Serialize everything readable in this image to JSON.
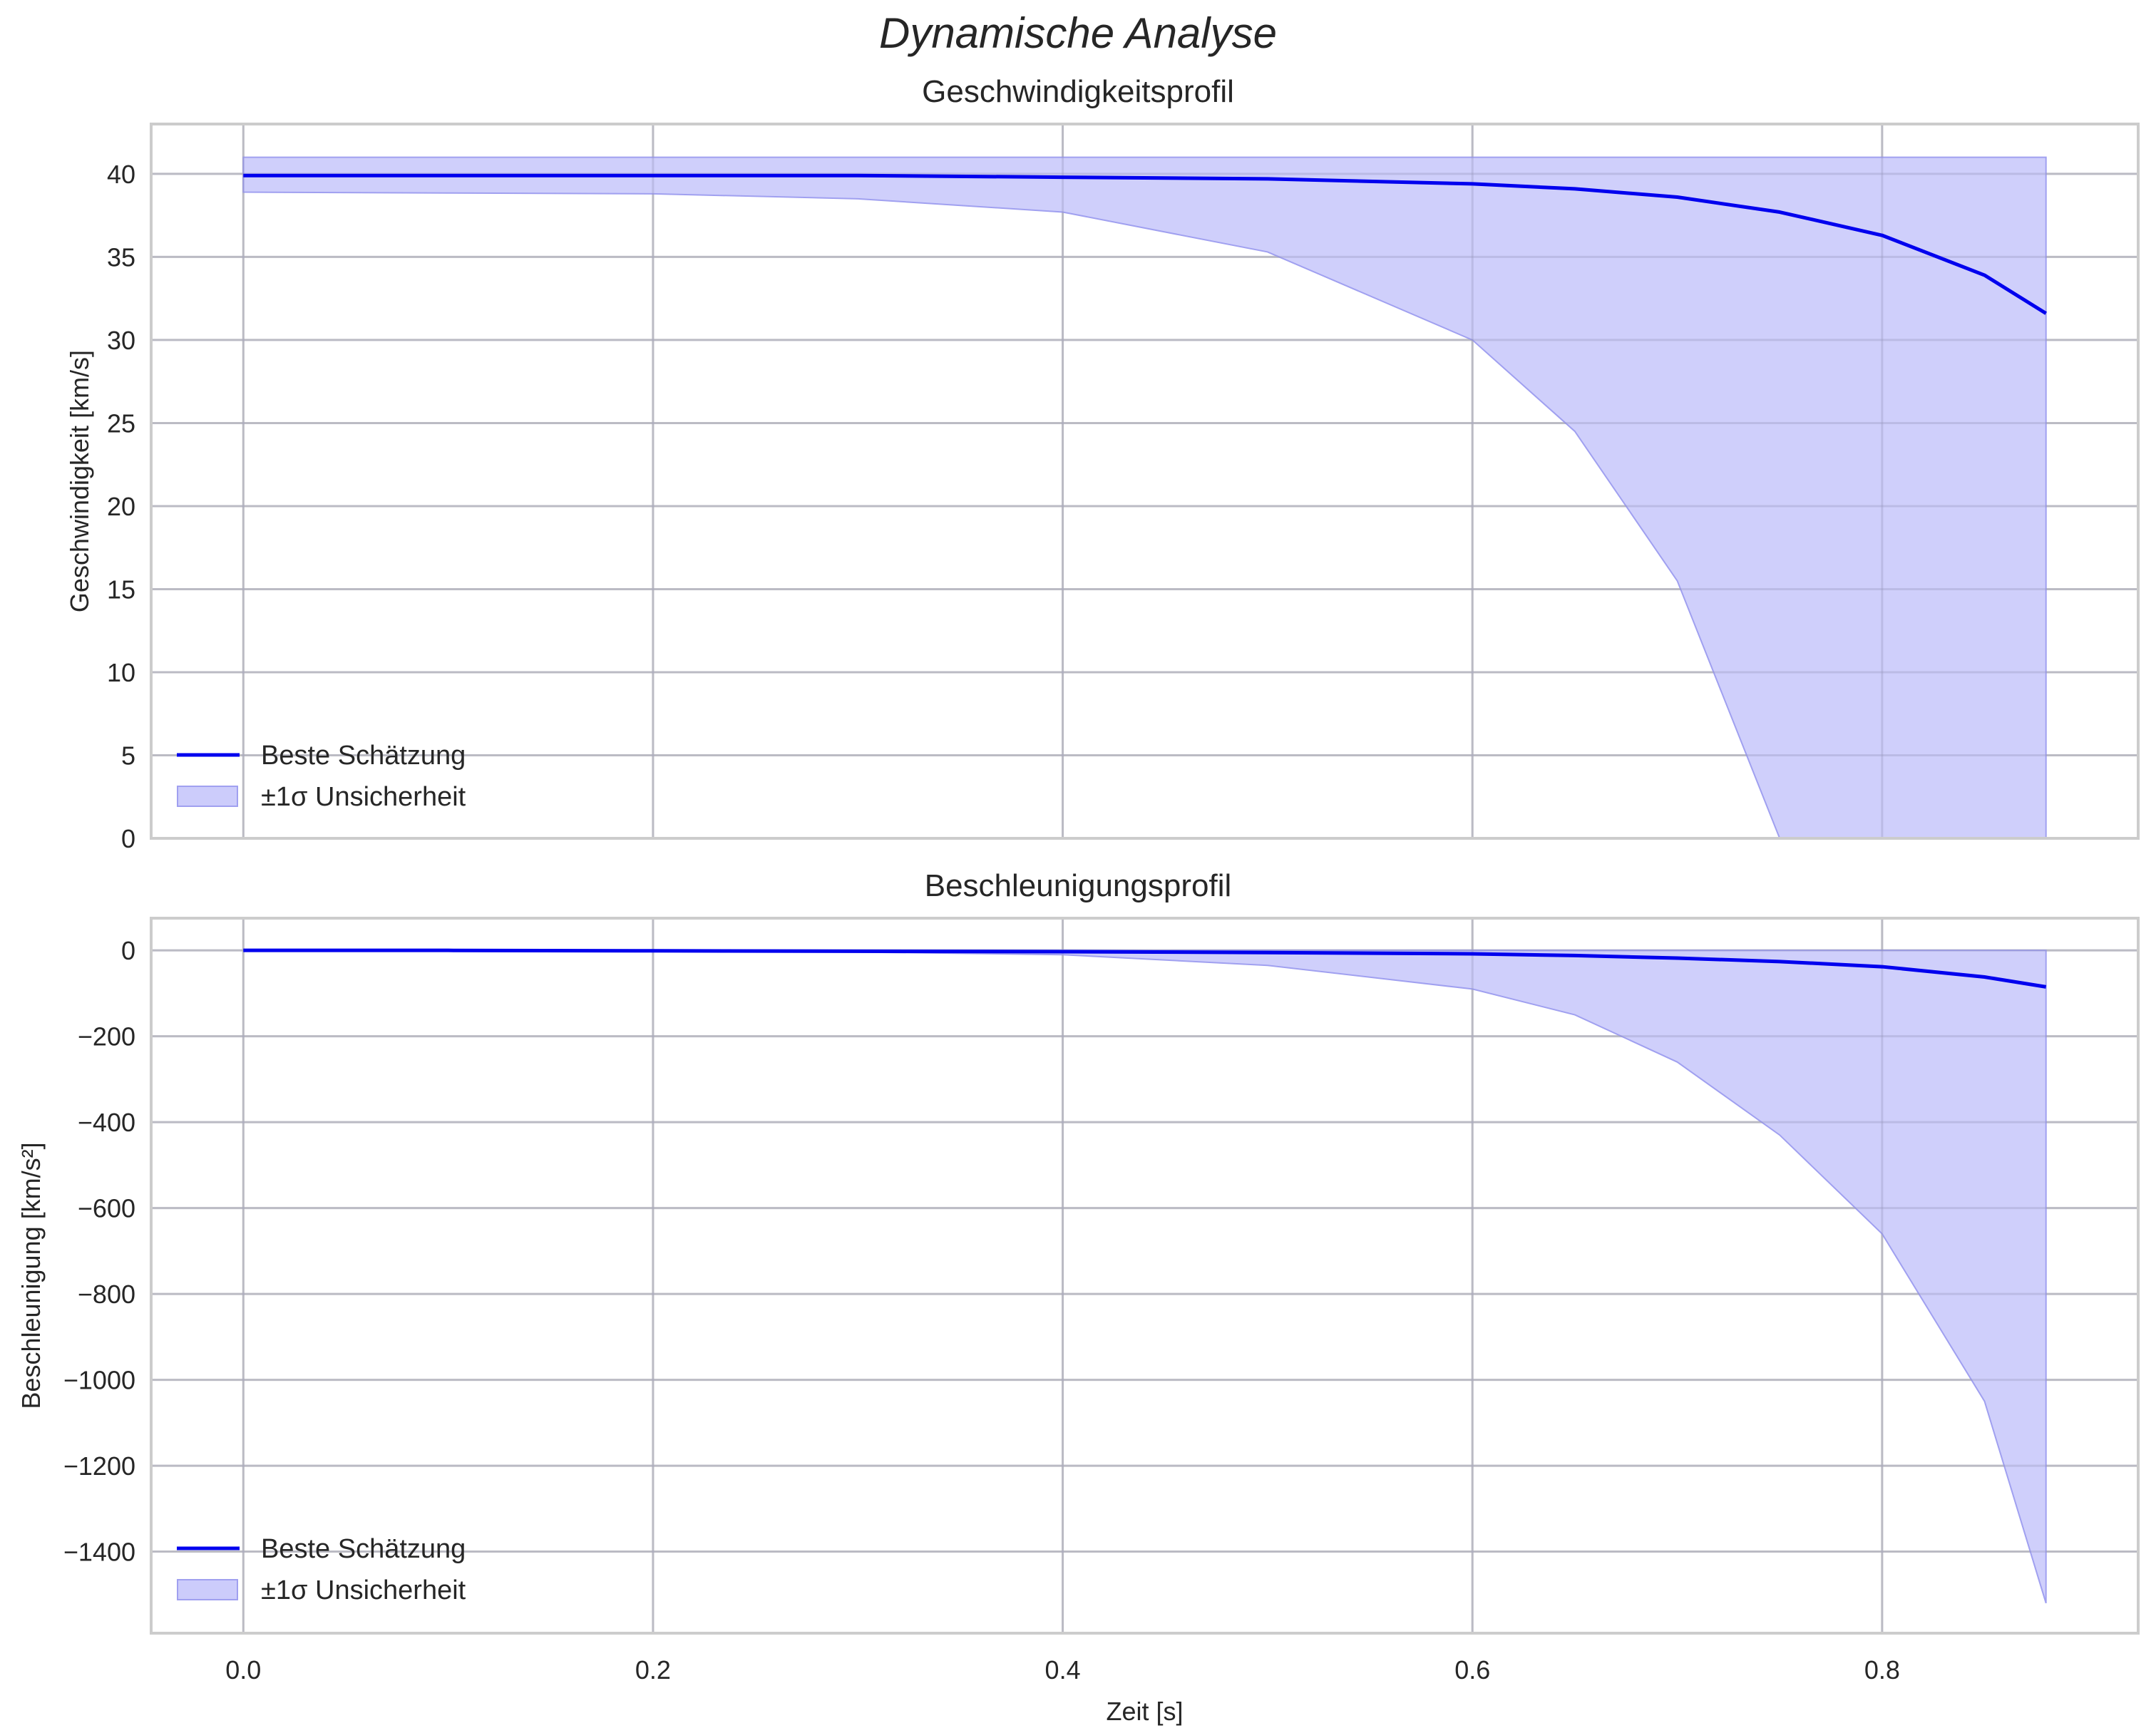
{
  "figure": {
    "title": "Dynamische Analyse"
  },
  "colors": {
    "line": "#0000ee",
    "band_fill": "#ccccfb",
    "band_edge": "#a0a0f0",
    "grid": "#cccccc"
  },
  "chart_data": [
    {
      "type": "line",
      "title": "Geschwindigkeitsprofil",
      "xlabel": "",
      "ylabel": "Geschwindigkeit [km/s]",
      "xlim": [
        -0.045,
        0.925
      ],
      "ylim": [
        0,
        43
      ],
      "xticks": [
        "0.0",
        "0.2",
        "0.4",
        "0.6",
        "0.8"
      ],
      "yticks": [
        "0",
        "5",
        "10",
        "15",
        "20",
        "25",
        "30",
        "35",
        "40"
      ],
      "grid": true,
      "legend_position": "lower left",
      "legend": [
        "Beste Schätzung",
        "±1σ Unsicherheit"
      ],
      "x": [
        0.0,
        0.1,
        0.2,
        0.3,
        0.4,
        0.5,
        0.6,
        0.65,
        0.7,
        0.75,
        0.8,
        0.85,
        0.88
      ],
      "series": [
        {
          "name": "Beste Schätzung",
          "values": [
            39.9,
            39.9,
            39.9,
            39.9,
            39.8,
            39.7,
            39.4,
            39.1,
            38.6,
            37.7,
            36.3,
            33.9,
            31.6
          ]
        },
        {
          "name": "±1σ Unsicherheit (untere Grenze)",
          "values": [
            38.9,
            38.85,
            38.8,
            38.5,
            37.7,
            35.3,
            30.0,
            24.5,
            15.5,
            0,
            0,
            0,
            0
          ]
        },
        {
          "name": "±1σ Unsicherheit (obere Grenze)",
          "values": [
            41,
            41,
            41,
            41,
            41,
            41,
            41,
            41,
            41,
            41,
            41,
            41,
            41
          ]
        }
      ]
    },
    {
      "type": "line",
      "title": "Beschleunigungsprofil",
      "xlabel": "Zeit [s]",
      "ylabel": "Beschleunigung [km/s²]",
      "xlim": [
        -0.045,
        0.925
      ],
      "ylim": [
        -1590,
        75
      ],
      "xticks": [
        "0.0",
        "0.2",
        "0.4",
        "0.6",
        "0.8"
      ],
      "yticks": [
        "0",
        "−200",
        "−400",
        "−600",
        "−800",
        "−1000",
        "−1200",
        "−1400"
      ],
      "grid": true,
      "legend_position": "lower left",
      "legend": [
        "Beste Schätzung",
        "±1σ Unsicherheit"
      ],
      "x": [
        0.0,
        0.1,
        0.2,
        0.3,
        0.4,
        0.5,
        0.6,
        0.65,
        0.7,
        0.75,
        0.8,
        0.85,
        0.88
      ],
      "series": [
        {
          "name": "Beste Schätzung",
          "values": [
            0,
            0,
            -1,
            -2,
            -3,
            -5,
            -8,
            -12,
            -18,
            -26,
            -38,
            -62,
            -85
          ]
        },
        {
          "name": "±1σ Unsicherheit (untere Grenze)",
          "values": [
            0,
            -1,
            -2,
            -4,
            -10,
            -35,
            -90,
            -150,
            -260,
            -430,
            -660,
            -1050,
            -1520
          ]
        },
        {
          "name": "±1σ Unsicherheit (obere Grenze)",
          "values": [
            0,
            0,
            0,
            0,
            0,
            0,
            0,
            0,
            0,
            0,
            0,
            0,
            0
          ]
        }
      ]
    }
  ]
}
